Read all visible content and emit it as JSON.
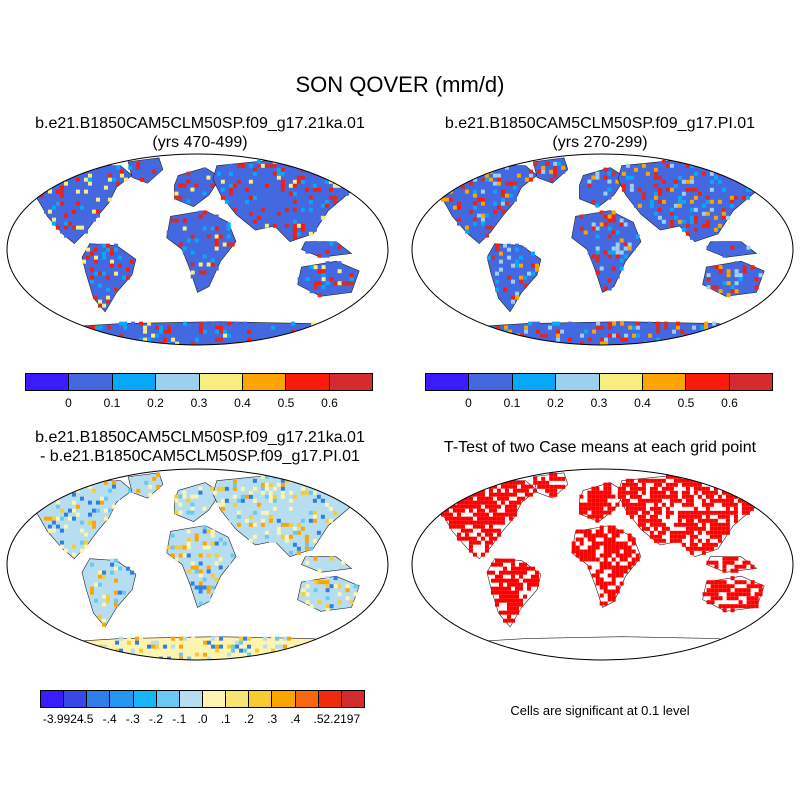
{
  "figure": {
    "title": "SON QOVER (mm/d)"
  },
  "panels": [
    {
      "id": "case1",
      "title_line1": "b.e21.B1850CAM5CLM50SP.f09_g17.21ka.01",
      "title_line2": "(yrs 470-499)",
      "colorbar": {
        "colors": [
          "#3a1cff",
          "#4468df",
          "#08a8f8",
          "#9cd0f0",
          "#f8ee80",
          "#fca400",
          "#fc1a0a",
          "#d42c2c"
        ],
        "tick_labels": [
          "0",
          "0.1",
          "0.2",
          "0.3",
          "0.4",
          "0.5",
          "0.6"
        ]
      }
    },
    {
      "id": "case2",
      "title_line1": "b.e21.B1850CAM5CLM50SP.f09_g17.PI.01",
      "title_line2": "(yrs 270-299)",
      "colorbar": {
        "colors": [
          "#3a1cff",
          "#4468df",
          "#08a8f8",
          "#9cd0f0",
          "#f8ee80",
          "#fca400",
          "#fc1a0a",
          "#d42c2c"
        ],
        "tick_labels": [
          "0",
          "0.1",
          "0.2",
          "0.3",
          "0.4",
          "0.5",
          "0.6"
        ]
      }
    },
    {
      "id": "difference",
      "title_line1": "b.e21.B1850CAM5CLM50SP.f09_g17.21ka.01",
      "title_line2": "- b.e21.B1850CAM5CLM50SP.f09_g17.PI.01",
      "colorbar": {
        "colors": [
          "#3a1cff",
          "#3848e8",
          "#2e7ee8",
          "#2496f0",
          "#16b4f8",
          "#6ac8f4",
          "#b6def0",
          "#fcf4b0",
          "#f8e470",
          "#f8cc30",
          "#fca400",
          "#f86810",
          "#f02a0a",
          "#d42c2c"
        ],
        "tick_labels": [
          "-3.9924",
          "-.5",
          "-.4",
          "-.3",
          "-.2",
          "-.1",
          ".0",
          ".1",
          ".2",
          ".3",
          ".4",
          ".5",
          "2.2197"
        ]
      }
    },
    {
      "id": "ttest",
      "title_line1": "T-Test of two Case means at each grid point",
      "note": "Cells are significant at 0.1 level",
      "colors": {
        "significant": "#ff0000"
      }
    }
  ]
}
